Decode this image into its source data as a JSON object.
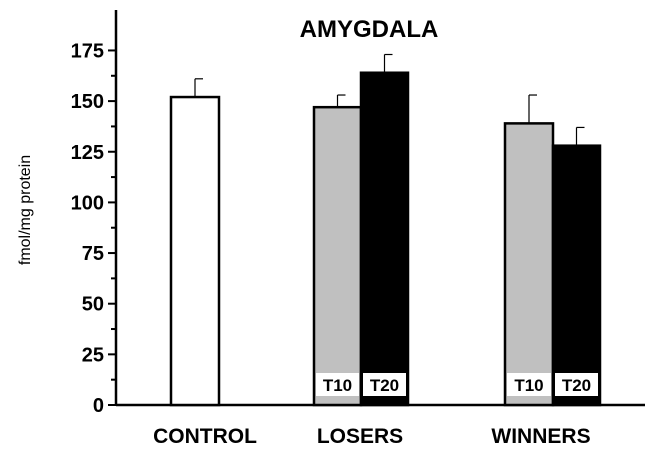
{
  "chart_data": {
    "type": "bar",
    "title": "AMYGDALA",
    "ylabel": "fmol/mg protein",
    "ylim": [
      0,
      190
    ],
    "yticks": [
      0,
      25,
      50,
      75,
      100,
      125,
      150,
      175
    ],
    "grid": false,
    "categories": [
      "CONTROL",
      "LOSERS",
      "WINNERS"
    ],
    "bars": [
      {
        "group": "CONTROL",
        "label": "",
        "value": 152,
        "error": 9,
        "fill": "#ffffff"
      },
      {
        "group": "LOSERS",
        "label": "T10",
        "value": 147,
        "error": 6,
        "fill": "#c0c0c0"
      },
      {
        "group": "LOSERS",
        "label": "T20",
        "value": 164,
        "error": 9,
        "fill": "#000000"
      },
      {
        "group": "WINNERS",
        "label": "T10",
        "value": 139,
        "error": 14,
        "fill": "#c0c0c0"
      },
      {
        "group": "WINNERS",
        "label": "T20",
        "value": 128,
        "error": 9,
        "fill": "#000000"
      }
    ]
  }
}
